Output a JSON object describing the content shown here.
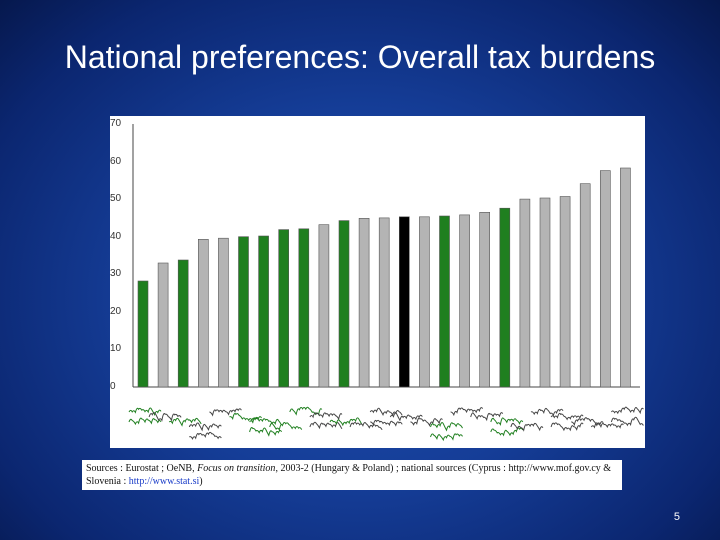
{
  "slide": {
    "title": "National preferences: Overall tax burdens",
    "page_number": "5"
  },
  "sources": {
    "text_1": "Sources : Eurostat ; OeNB, ",
    "italic": "Focus on transition",
    "text_2": ", 2003-2 (Hungary & Poland) ; national sources (Cyprus : http://www.mof.gov.cy & Slovenia : ",
    "link": "http://www.stat.si",
    "text_3": ")"
  },
  "colors": {
    "green": "#1f7f1f",
    "grey": "#b4b4b4",
    "highlight": "#000000"
  },
  "chart_data": {
    "type": "bar",
    "title": "",
    "xlabel": "",
    "ylabel": "",
    "ylim": [
      0,
      70
    ],
    "yticks": [
      0,
      10,
      20,
      30,
      40,
      50,
      60,
      70
    ],
    "grid": false,
    "values": [
      28.2,
      33.0,
      33.8,
      39.3,
      39.6,
      40.0,
      40.2,
      41.9,
      42.1,
      43.2,
      44.3,
      44.9,
      45.0,
      45.3,
      45.3,
      45.5,
      45.8,
      46.5,
      47.6,
      50.0,
      50.3,
      50.7,
      54.1,
      57.6,
      58.3
    ],
    "colors": [
      "green",
      "grey",
      "green",
      "grey",
      "grey",
      "green",
      "green",
      "green",
      "green",
      "grey",
      "green",
      "grey",
      "grey",
      "highlight",
      "grey",
      "green",
      "grey",
      "grey",
      "green",
      "grey",
      "grey",
      "grey",
      "grey",
      "grey",
      "grey"
    ]
  }
}
